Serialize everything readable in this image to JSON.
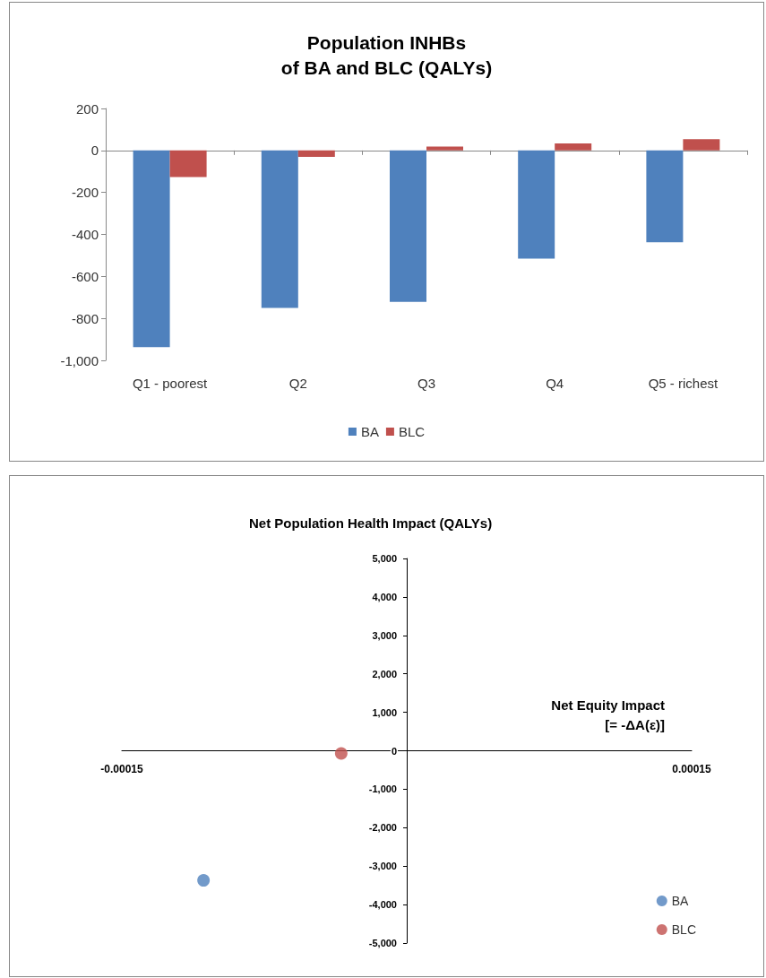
{
  "chart_data": [
    {
      "type": "bar",
      "title": "Population INHBs\nof BA and BLC (QALYs)",
      "categories": [
        "Q1 - poorest",
        "Q2",
        "Q3",
        "Q4",
        "Q5 - richest"
      ],
      "series": [
        {
          "name": "BA",
          "color": "#4f81bd",
          "values": [
            -937,
            -750,
            -721,
            -515,
            -437
          ]
        },
        {
          "name": "BLC",
          "color": "#c0504d",
          "values": [
            -127,
            -31,
            19,
            33,
            54
          ]
        }
      ],
      "ylim": [
        -1000,
        200
      ],
      "yticks": [
        {
          "value": -1000,
          "label": "-1,000"
        },
        -800,
        -600,
        -400,
        -200,
        0,
        200
      ],
      "legend": "bottom"
    },
    {
      "type": "scatter",
      "title": "Net Population Health Impact (QALYs)",
      "xlabel": "Net Equity Impact\n[= -ΔA(ε)]",
      "series": [
        {
          "name": "BA",
          "color": "#4f81bd",
          "x": [
            -0.000107
          ],
          "values": [
            -3370
          ]
        },
        {
          "name": "BLC",
          "color": "#c0504d",
          "x": [
            -3.45e-05
          ],
          "values": [
            -70
          ]
        }
      ],
      "xlim": [
        -0.00015,
        0.00015
      ],
      "xticks": [
        -0.00015,
        0.00015
      ],
      "ylim": [
        -5000,
        5000
      ],
      "yticks": [
        {
          "value": -5000,
          "label": "-5,000"
        },
        {
          "value": -4000,
          "label": "-4,000"
        },
        {
          "value": -3000,
          "label": "-3,000"
        },
        {
          "value": -2000,
          "label": "-2,000"
        },
        {
          "value": -1000,
          "label": "-1,000"
        },
        0,
        {
          "value": 1000,
          "label": "1,000"
        },
        {
          "value": 2000,
          "label": "2,000"
        },
        {
          "value": 3000,
          "label": "3,000"
        },
        {
          "value": 4000,
          "label": "4,000"
        },
        {
          "value": 5000,
          "label": "5,000"
        }
      ],
      "legend": "bottom right",
      "marker": "circle"
    }
  ]
}
